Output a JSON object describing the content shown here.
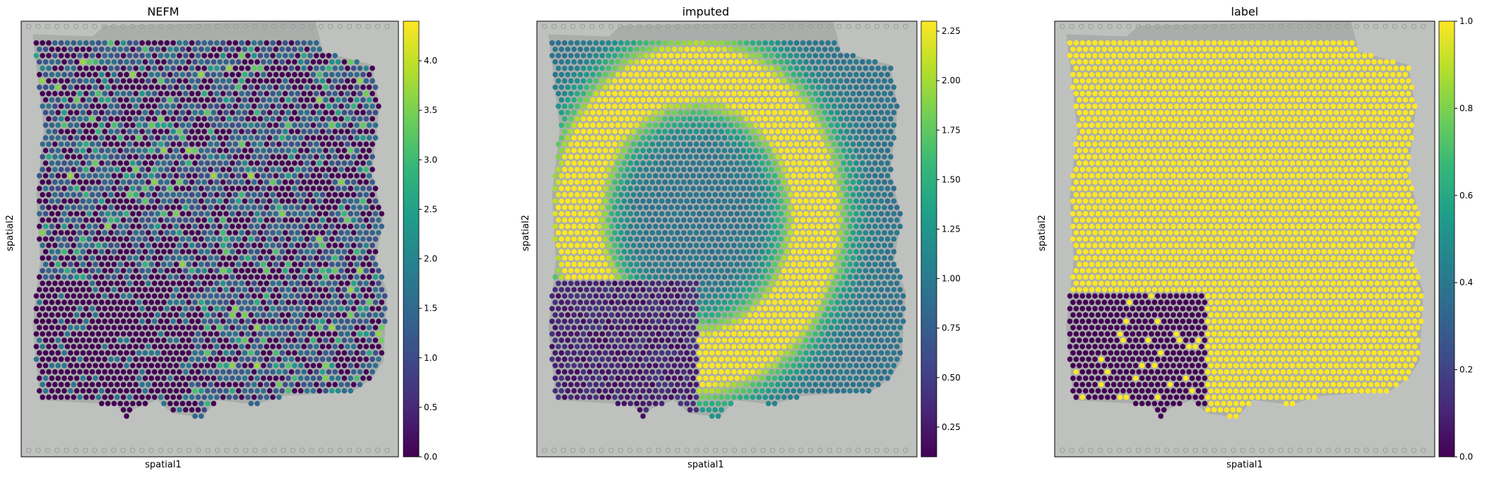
{
  "figure": {
    "colormap": "viridis",
    "colormap_stops": [
      "#440154",
      "#482878",
      "#3e4a89",
      "#31688e",
      "#26828e",
      "#1f9e89",
      "#35b779",
      "#6ece58",
      "#b5de2b",
      "#fde725"
    ],
    "tissue_color": "#a9aeab",
    "dot_color": "#9a9c9a"
  },
  "chart_data": [
    {
      "type": "heatmap",
      "subtype": "spatial spot map",
      "title": "NEFM",
      "xlabel": "spatial1",
      "ylabel": "spatial2",
      "colorbar": {
        "range": [
          0.0,
          4.4
        ],
        "ticks": [
          0.0,
          0.5,
          1.0,
          1.5,
          2.0,
          2.5,
          3.0,
          3.5,
          4.0
        ],
        "tick_labels": [
          "0.0",
          "0.5",
          "1.0",
          "1.5",
          "2.0",
          "2.5",
          "3.0",
          "3.5",
          "4.0"
        ]
      },
      "pattern": "sparse"
    },
    {
      "type": "heatmap",
      "subtype": "spatial spot map",
      "title": "imputed",
      "xlabel": "spatial1",
      "ylabel": "spatial2",
      "colorbar": {
        "range": [
          0.1,
          2.3
        ],
        "ticks": [
          0.25,
          0.5,
          0.75,
          1.0,
          1.25,
          1.5,
          1.75,
          2.0,
          2.25
        ],
        "tick_labels": [
          "0.25",
          "0.50",
          "0.75",
          "1.00",
          "1.25",
          "1.50",
          "1.75",
          "2.00",
          "2.25"
        ]
      },
      "pattern": "smooth"
    },
    {
      "type": "heatmap",
      "subtype": "spatial spot map",
      "title": "label",
      "xlabel": "spatial1",
      "ylabel": "spatial2",
      "colorbar": {
        "range": [
          0.0,
          1.0
        ],
        "ticks": [
          0.0,
          0.2,
          0.4,
          0.6,
          0.8,
          1.0
        ],
        "tick_labels": [
          "0.0",
          "0.2",
          "0.4",
          "0.6",
          "0.8",
          "1.0"
        ]
      },
      "pattern": "binary"
    }
  ]
}
